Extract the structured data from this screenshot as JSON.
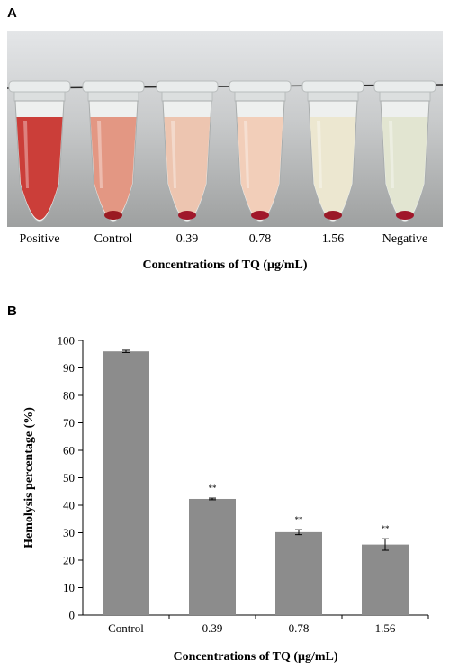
{
  "panel_a": {
    "letter": "A",
    "tubes": [
      {
        "label": "Positive",
        "liquid": "#c8342e",
        "pellet": null
      },
      {
        "label": "Control",
        "liquid": "#e2917c",
        "pellet": "#9a1a22"
      },
      {
        "label": "0.39",
        "liquid": "#ecc2ac",
        "pellet": "#a0172a"
      },
      {
        "label": "0.78",
        "liquid": "#f1cbb5",
        "pellet": "#a0172a"
      },
      {
        "label": "1.56",
        "liquid": "#ebe6cd",
        "pellet": "#9a1a28"
      },
      {
        "label": "Negative",
        "liquid": "#e0e4cf",
        "pellet": "#a0172a"
      }
    ],
    "xlabel": "Concentrations of TQ (μg/mL)"
  },
  "panel_b": {
    "letter": "B",
    "chart_data": {
      "type": "bar",
      "categories": [
        "Control",
        "0.39",
        "0.78",
        "1.56"
      ],
      "values": [
        96,
        42.3,
        30.2,
        25.7
      ],
      "errors": [
        0.4,
        0.3,
        0.9,
        2.1
      ],
      "annotations": [
        "",
        "**",
        "**",
        "**"
      ],
      "xlabel": "Concentrations of TQ (μg/mL)",
      "ylabel": "Hemolysis percentage (%)",
      "ylim": [
        0,
        100
      ],
      "yticks": [
        0,
        10,
        20,
        30,
        40,
        50,
        60,
        70,
        80,
        90,
        100
      ],
      "bar_color": "#8c8c8c",
      "grid": false
    }
  }
}
